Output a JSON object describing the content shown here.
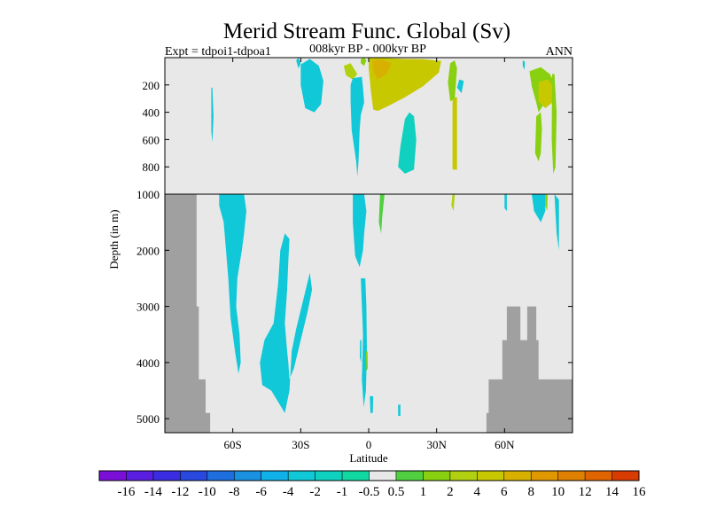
{
  "chart_data": {
    "type": "heatmap",
    "title": "Merid Stream Func. Global (Sv)",
    "subtitle_left": "Expt = tdpoi1-tdpoa1",
    "subtitle_center": "008kyr BP - 000kyr BP",
    "subtitle_right": "ANN",
    "xlabel": "Latitude",
    "ylabel": "Depth (in m)",
    "xlim": [
      -90,
      90
    ],
    "ylim_upper": [
      0,
      1000
    ],
    "ylim_lower": [
      1000,
      5250
    ],
    "x_ticks": [
      {
        "value": -60,
        "label": "60S"
      },
      {
        "value": -30,
        "label": "30S"
      },
      {
        "value": 0,
        "label": "0"
      },
      {
        "value": 30,
        "label": "30N"
      },
      {
        "value": 60,
        "label": "60N"
      }
    ],
    "y_ticks_upper": [
      {
        "value": 200,
        "label": "200"
      },
      {
        "value": 400,
        "label": "400"
      },
      {
        "value": 600,
        "label": "600"
      },
      {
        "value": 800,
        "label": "800"
      }
    ],
    "y_ticks_lower": [
      {
        "value": 1000,
        "label": "1000"
      },
      {
        "value": 2000,
        "label": "2000"
      },
      {
        "value": 3000,
        "label": "3000"
      },
      {
        "value": 4000,
        "label": "4000"
      },
      {
        "value": 5000,
        "label": "5000"
      }
    ],
    "colorbar": {
      "labels": [
        "-16",
        "-14",
        "-12",
        "-10",
        "-8",
        "-6",
        "-4",
        "-2",
        "-1",
        "-0.5",
        "0.5",
        "1",
        "2",
        "4",
        "6",
        "8",
        "10",
        "12",
        "14",
        "16"
      ],
      "colors": [
        "#7a10d8",
        "#5a1ee0",
        "#3a2ce0",
        "#2848e0",
        "#1e6ee0",
        "#1a90e0",
        "#10b0e8",
        "#10c8d8",
        "#10d0c0",
        "#10d8a0",
        "#e8e8e8",
        "#50d040",
        "#88d010",
        "#b0d010",
        "#c8c800",
        "#d8b000",
        "#e09800",
        "#e08000",
        "#e06400",
        "#d83c00"
      ]
    },
    "land_color": "#a0a0a0",
    "missing_color": "#e8e8e8",
    "regions_upper": [
      {
        "level": 6,
        "points": [
          [
            0.0,
            0
          ],
          [
            4.0,
            0
          ],
          [
            16.0,
            10
          ],
          [
            24.0,
            12
          ],
          [
            32.0,
            25
          ],
          [
            31.0,
            110
          ],
          [
            24.0,
            210
          ],
          [
            16.0,
            290
          ],
          [
            8.0,
            360
          ],
          [
            4.0,
            390
          ],
          [
            2.0,
            380
          ],
          [
            1.0,
            250
          ],
          [
            0.0,
            80
          ]
        ]
      },
      {
        "level": 8,
        "points": [
          [
            1.5,
            20
          ],
          [
            6.0,
            15
          ],
          [
            10.0,
            40
          ],
          [
            8.0,
            120
          ],
          [
            4.0,
            160
          ],
          [
            2.0,
            100
          ]
        ]
      },
      {
        "level": 4,
        "points": [
          [
            -11.0,
            60
          ],
          [
            -8.0,
            40
          ],
          [
            -5.0,
            120
          ],
          [
            -7.0,
            160
          ],
          [
            -10.0,
            130
          ]
        ]
      },
      {
        "level": 3,
        "points": [
          [
            -3.5,
            10
          ],
          [
            -2.0,
            0
          ],
          [
            -1.0,
            20
          ],
          [
            -2.0,
            60
          ],
          [
            -3.5,
            40
          ]
        ]
      },
      {
        "level": -2,
        "points": [
          [
            -7.0,
            150
          ],
          [
            -3.0,
            140
          ],
          [
            -2.5,
            220
          ],
          [
            -2.0,
            330
          ],
          [
            -3.5,
            420
          ],
          [
            -4.0,
            530
          ],
          [
            -4.5,
            760
          ],
          [
            -5.0,
            870
          ],
          [
            -5.5,
            760
          ],
          [
            -7.5,
            530
          ],
          [
            -8.0,
            320
          ],
          [
            -8.0,
            200
          ]
        ]
      },
      {
        "level": -2,
        "points": [
          [
            -30.0,
            50
          ],
          [
            -26.0,
            10
          ],
          [
            -22.0,
            60
          ],
          [
            -20.0,
            170
          ],
          [
            -21.0,
            340
          ],
          [
            -24.0,
            400
          ],
          [
            -28.0,
            370
          ],
          [
            -30.0,
            200
          ]
        ]
      },
      {
        "level": -2,
        "points": [
          [
            -32.0,
            20
          ],
          [
            -31.0,
            0
          ],
          [
            -30.0,
            40
          ],
          [
            -31.0,
            80
          ]
        ]
      },
      {
        "level": -1,
        "points": [
          [
            16.0,
            450
          ],
          [
            18.0,
            400
          ],
          [
            20.0,
            430
          ],
          [
            21.0,
            600
          ],
          [
            20.0,
            820
          ],
          [
            16.0,
            850
          ],
          [
            13.0,
            800
          ],
          [
            14.0,
            650
          ]
        ]
      },
      {
        "level": 6,
        "points": [
          [
            37.0,
            290
          ],
          [
            39.0,
            290
          ],
          [
            39.0,
            820
          ],
          [
            37.0,
            820
          ]
        ]
      },
      {
        "level": 2,
        "points": [
          [
            36.0,
            40
          ],
          [
            38.0,
            20
          ],
          [
            39.0,
            80
          ],
          [
            38.0,
            300
          ],
          [
            36.0,
            320
          ],
          [
            35.0,
            180
          ]
        ]
      },
      {
        "level": -2,
        "points": [
          [
            40.0,
            160
          ],
          [
            42.0,
            170
          ],
          [
            41.0,
            260
          ],
          [
            39.0,
            220
          ]
        ]
      },
      {
        "level": 2,
        "points": [
          [
            71.0,
            100
          ],
          [
            76.0,
            70
          ],
          [
            80.0,
            120
          ],
          [
            82.0,
            180
          ],
          [
            81.0,
            230
          ],
          [
            79.0,
            300
          ],
          [
            75.0,
            400
          ],
          [
            74.0,
            330
          ],
          [
            72.0,
            210
          ]
        ]
      },
      {
        "level": 6,
        "points": [
          [
            75.0,
            180
          ],
          [
            79.0,
            160
          ],
          [
            82.0,
            220
          ],
          [
            81.0,
            330
          ],
          [
            78.0,
            370
          ],
          [
            75.0,
            320
          ]
        ]
      },
      {
        "level": 2,
        "points": [
          [
            74.0,
            430
          ],
          [
            76.0,
            400
          ],
          [
            76.5,
            520
          ],
          [
            76.0,
            700
          ],
          [
            75.0,
            760
          ],
          [
            73.5,
            700
          ]
        ]
      },
      {
        "level": 2,
        "points": [
          [
            81.0,
            120
          ],
          [
            82.0,
            120
          ],
          [
            83.0,
            400
          ],
          [
            82.5,
            800
          ],
          [
            81.5,
            850
          ],
          [
            80.8,
            600
          ]
        ]
      },
      {
        "level": -2,
        "points": [
          [
            -69.5,
            220
          ],
          [
            -69.0,
            220
          ],
          [
            -68.5,
            430
          ],
          [
            -69.0,
            620
          ],
          [
            -69.5,
            540
          ]
        ]
      },
      {
        "level": -2,
        "points": [
          [
            68.0,
            20
          ],
          [
            69.0,
            30
          ],
          [
            68.8,
            90
          ],
          [
            68.0,
            60
          ]
        ]
      }
    ],
    "regions_lower": [
      {
        "level": -2,
        "points": [
          [
            -66.0,
            1000
          ],
          [
            -55.0,
            1000
          ],
          [
            -54.0,
            1300
          ],
          [
            -55.0,
            1700
          ],
          [
            -56.0,
            2000
          ],
          [
            -58.0,
            2500
          ],
          [
            -58.5,
            3000
          ],
          [
            -57.0,
            3500
          ],
          [
            -56.5,
            4000
          ],
          [
            -57.5,
            4200
          ],
          [
            -59.0,
            3800
          ],
          [
            -61.0,
            3200
          ],
          [
            -62.0,
            2500
          ],
          [
            -63.0,
            2000
          ],
          [
            -64.0,
            1500
          ],
          [
            -66.0,
            1200
          ]
        ]
      },
      {
        "level": -2,
        "points": [
          [
            -37.0,
            1700
          ],
          [
            -35.0,
            1800
          ],
          [
            -35.5,
            2200
          ],
          [
            -36.0,
            2700
          ],
          [
            -37.0,
            3300
          ],
          [
            -36.0,
            3800
          ],
          [
            -35.5,
            4000
          ],
          [
            -35.0,
            4300
          ],
          [
            -33.0,
            4100
          ],
          [
            -30.0,
            3600
          ],
          [
            -27.0,
            3100
          ],
          [
            -25.0,
            2700
          ],
          [
            -26.0,
            2400
          ],
          [
            -29.0,
            2900
          ],
          [
            -32.0,
            3400
          ],
          [
            -34.0,
            3800
          ],
          [
            -35.0,
            4500
          ],
          [
            -37.0,
            4900
          ],
          [
            -40.0,
            4700
          ],
          [
            -43.0,
            4500
          ],
          [
            -47.0,
            4400
          ],
          [
            -48.0,
            4000
          ],
          [
            -46.0,
            3600
          ],
          [
            -42.0,
            3300
          ],
          [
            -40.0,
            2600
          ],
          [
            -39.0,
            2000
          ]
        ]
      },
      {
        "level": -2,
        "points": [
          [
            -7.0,
            1000
          ],
          [
            -2.0,
            1000
          ],
          [
            -1.0,
            1300
          ],
          [
            -2.0,
            1700
          ],
          [
            -2.5,
            2000
          ],
          [
            -4.0,
            2300
          ],
          [
            -6.0,
            2100
          ],
          [
            -7.0,
            1500
          ]
        ]
      },
      {
        "level": -2,
        "points": [
          [
            -3.5,
            2500
          ],
          [
            -1.5,
            2500
          ],
          [
            -1.0,
            3000
          ],
          [
            -0.8,
            3800
          ],
          [
            -1.2,
            4500
          ],
          [
            -2.2,
            4800
          ],
          [
            -3.0,
            4300
          ],
          [
            -2.5,
            3500
          ]
        ]
      },
      {
        "level": 2,
        "points": [
          [
            -1.2,
            3800
          ],
          [
            -0.5,
            3800
          ],
          [
            -0.4,
            4100
          ],
          [
            -1.0,
            4150
          ]
        ]
      },
      {
        "level": -2,
        "points": [
          [
            -3.8,
            3600
          ],
          [
            -3.2,
            3600
          ],
          [
            -3.3,
            4000
          ],
          [
            -3.9,
            3900
          ]
        ]
      },
      {
        "level": 1,
        "points": [
          [
            5.0,
            1000
          ],
          [
            7.0,
            1000
          ],
          [
            6.0,
            1400
          ],
          [
            5.5,
            1700
          ],
          [
            4.5,
            1500
          ]
        ]
      },
      {
        "level": -2,
        "points": [
          [
            0.5,
            4600
          ],
          [
            2.0,
            4600
          ],
          [
            1.8,
            4900
          ],
          [
            0.8,
            4900
          ]
        ]
      },
      {
        "level": -2,
        "points": [
          [
            13.0,
            4750
          ],
          [
            14.0,
            4750
          ],
          [
            14.0,
            4950
          ],
          [
            13.0,
            4950
          ]
        ]
      },
      {
        "level": 4,
        "points": [
          [
            37.0,
            1000
          ],
          [
            38.0,
            1000
          ],
          [
            37.5,
            1300
          ],
          [
            36.5,
            1200
          ]
        ]
      },
      {
        "level": -2,
        "points": [
          [
            60.0,
            1000
          ],
          [
            61.0,
            1000
          ],
          [
            61.0,
            1300
          ],
          [
            60.0,
            1250
          ]
        ]
      },
      {
        "level": -2,
        "points": [
          [
            72.0,
            1000
          ],
          [
            78.0,
            1000
          ],
          [
            78.0,
            1300
          ],
          [
            76.0,
            1500
          ],
          [
            73.0,
            1300
          ]
        ]
      },
      {
        "level": -2,
        "points": [
          [
            82.0,
            1000
          ],
          [
            84.0,
            1100
          ],
          [
            84.0,
            2000
          ],
          [
            83.0,
            1700
          ]
        ]
      },
      {
        "level": 2,
        "points": [
          [
            78.0,
            1000
          ],
          [
            79.0,
            1000
          ],
          [
            78.8,
            1300
          ],
          [
            78.0,
            1200
          ]
        ]
      }
    ],
    "land": [
      [
        [
          -90.0,
          1000
        ],
        [
          -76.0,
          1000
        ],
        [
          -76.0,
          3000
        ],
        [
          -75.0,
          3000
        ],
        [
          -75.0,
          4300
        ],
        [
          -72.0,
          4300
        ],
        [
          -72.0,
          4900
        ],
        [
          -70.0,
          4900
        ],
        [
          -70.0,
          5250
        ],
        [
          -90.0,
          5250
        ]
      ],
      [
        [
          52.0,
          5250
        ],
        [
          52.0,
          4900
        ],
        [
          53.0,
          4900
        ],
        [
          53.0,
          4300
        ],
        [
          59.0,
          4300
        ],
        [
          59.0,
          3600
        ],
        [
          61.0,
          3600
        ],
        [
          61.0,
          3000
        ],
        [
          67.0,
          3000
        ],
        [
          67.0,
          3600
        ],
        [
          70.0,
          3600
        ],
        [
          70.0,
          3000
        ],
        [
          74.0,
          3000
        ],
        [
          74.0,
          3600
        ],
        [
          75.0,
          3600
        ],
        [
          75.0,
          4300
        ],
        [
          90.0,
          4300
        ],
        [
          90.0,
          5250
        ]
      ]
    ]
  }
}
